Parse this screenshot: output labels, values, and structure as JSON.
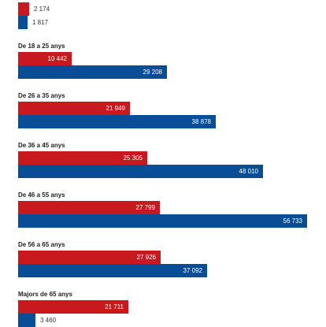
{
  "colors": {
    "series_a": "#c8191e",
    "series_b": "#0a4d97"
  },
  "chart_data": {
    "type": "bar",
    "orientation": "horizontal",
    "xlim": [
      0,
      60000
    ],
    "categories": [
      "",
      "De 18 a 25 anys",
      "De 26 a 35 anys",
      "De 36 a 45 anys",
      "De 46 a 55 anys",
      "De 56 a 65 anys",
      "Majors de 65 anys"
    ],
    "series": [
      {
        "values": [
          2174,
          10442,
          21949,
          25305,
          27799,
          27926,
          21711
        ],
        "labels": [
          "2 174",
          "10 442",
          "21 949",
          "25 305",
          "27 799",
          "27 926",
          "21 711"
        ]
      },
      {
        "values": [
          1817,
          29208,
          38878,
          48010,
          56733,
          37092,
          3460
        ],
        "labels": [
          "1 817",
          "29 208",
          "38 878",
          "48 010",
          "56 733",
          "37 092",
          "3 460"
        ]
      }
    ],
    "grid": false,
    "legend": "none"
  }
}
